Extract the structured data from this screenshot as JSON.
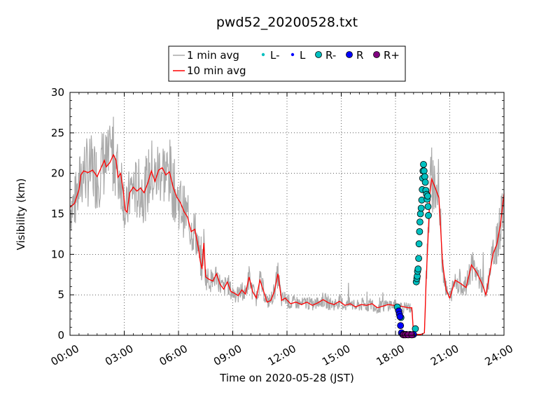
{
  "chart_data": {
    "type": "line",
    "title": "pwd52_20200528.txt",
    "xlabel": "Time on 2020-05-28 (JST)",
    "ylabel": "Visibility (km)",
    "xlim": [
      0,
      24
    ],
    "ylim": [
      0,
      30
    ],
    "x_tick_labels": [
      "00:00",
      "03:00",
      "06:00",
      "09:00",
      "12:00",
      "15:00",
      "18:00",
      "21:00",
      "24:00"
    ],
    "y_tick_labels": [
      "0",
      "5",
      "10",
      "15",
      "20",
      "25",
      "30"
    ],
    "grid": true,
    "legend_position": "top-center",
    "legend": {
      "one_min": "1 min avg",
      "ten_min": "10 min avg",
      "l_minus": "L-",
      "l": "L",
      "r_minus": "R-",
      "r": "R",
      "r_plus": "R+"
    },
    "series": [
      {
        "name": "10 min avg",
        "color": "#ff0000",
        "x_hours": [
          0.0,
          0.25,
          0.5,
          0.6,
          0.75,
          1.0,
          1.25,
          1.5,
          1.7,
          1.9,
          2.0,
          2.2,
          2.4,
          2.55,
          2.65,
          2.8,
          2.95,
          3.05,
          3.15,
          3.3,
          3.5,
          3.7,
          3.9,
          4.1,
          4.3,
          4.5,
          4.7,
          4.9,
          5.1,
          5.3,
          5.5,
          5.7,
          5.9,
          6.1,
          6.3,
          6.5,
          6.7,
          6.9,
          7.1,
          7.2,
          7.3,
          7.4,
          7.5,
          7.7,
          7.9,
          8.1,
          8.3,
          8.5,
          8.7,
          8.9,
          9.1,
          9.3,
          9.5,
          9.7,
          9.9,
          10.1,
          10.3,
          10.5,
          10.7,
          10.9,
          11.1,
          11.3,
          11.5,
          11.7,
          11.9,
          12.2,
          12.5,
          12.8,
          13.1,
          13.4,
          13.7,
          14.0,
          14.3,
          14.6,
          14.9,
          15.2,
          15.5,
          15.8,
          16.1,
          16.4,
          16.7,
          17.0,
          17.3,
          17.6,
          17.9,
          18.1,
          18.3,
          18.5,
          18.7,
          18.9,
          19.0,
          19.05,
          19.1,
          19.2,
          19.3,
          19.4,
          19.5,
          19.6,
          19.7,
          19.8,
          19.9,
          20.0,
          20.2,
          20.4,
          20.6,
          20.8,
          21.0,
          21.3,
          21.6,
          21.9,
          22.2,
          22.5,
          22.8,
          23.0,
          23.2,
          23.4,
          23.6,
          23.8,
          24.0
        ],
        "values": [
          15.8,
          16.3,
          18.0,
          19.8,
          20.3,
          20.1,
          20.4,
          19.6,
          20.6,
          21.6,
          20.8,
          21.3,
          22.3,
          21.6,
          19.5,
          20.0,
          17.8,
          15.5,
          15.2,
          17.6,
          18.3,
          17.8,
          18.2,
          17.6,
          18.8,
          20.3,
          19.0,
          20.4,
          20.7,
          19.8,
          20.2,
          18.3,
          17.1,
          16.4,
          15.3,
          14.6,
          12.8,
          13.1,
          10.8,
          9.2,
          8.2,
          11.4,
          7.2,
          6.9,
          6.7,
          7.6,
          6.3,
          5.7,
          6.6,
          5.4,
          5.2,
          4.9,
          5.6,
          5.1,
          7.2,
          5.4,
          4.6,
          6.8,
          5.5,
          4.1,
          4.3,
          5.4,
          7.6,
          4.3,
          4.6,
          3.9,
          4.1,
          3.8,
          4.1,
          3.7,
          4.0,
          4.4,
          4.0,
          3.8,
          4.2,
          3.7,
          3.9,
          3.5,
          3.8,
          3.7,
          3.9,
          3.4,
          3.6,
          3.8,
          3.7,
          3.5,
          3.6,
          3.5,
          3.4,
          3.4,
          0.2,
          0.1,
          0.1,
          0.1,
          0.1,
          0.1,
          0.2,
          0.3,
          7.0,
          12.0,
          17.5,
          19.3,
          18.2,
          17.0,
          9.0,
          5.6,
          4.6,
          6.8,
          6.4,
          5.9,
          8.7,
          7.7,
          6.3,
          5.0,
          7.5,
          10.1,
          11.2,
          13.6,
          17.5
        ]
      }
    ],
    "markers": [
      {
        "type": "R-",
        "color": "#00c0c0",
        "points": [
          [
            18.1,
            3.5
          ],
          [
            18.3,
            2.2
          ],
          [
            19.1,
            0.8
          ],
          [
            19.15,
            6.6
          ],
          [
            19.18,
            7.0
          ],
          [
            19.2,
            7.3
          ],
          [
            19.22,
            7.9
          ],
          [
            19.25,
            8.2
          ],
          [
            19.28,
            9.5
          ],
          [
            19.3,
            11.3
          ],
          [
            19.33,
            12.8
          ],
          [
            19.35,
            14.0
          ],
          [
            19.38,
            15.0
          ],
          [
            19.42,
            15.7
          ],
          [
            19.45,
            16.7
          ],
          [
            19.48,
            18.0
          ],
          [
            19.5,
            19.4
          ],
          [
            19.52,
            20.3
          ],
          [
            19.55,
            21.1
          ],
          [
            19.58,
            20.3
          ],
          [
            19.62,
            19.6
          ],
          [
            19.65,
            18.9
          ],
          [
            19.68,
            17.9
          ],
          [
            19.72,
            17.4
          ],
          [
            19.75,
            16.8
          ],
          [
            19.78,
            17.2
          ],
          [
            19.8,
            15.9
          ],
          [
            19.82,
            14.8
          ]
        ]
      },
      {
        "type": "R",
        "color": "#0000ff",
        "points": [
          [
            18.18,
            3.0
          ],
          [
            18.22,
            2.6
          ],
          [
            18.25,
            2.3
          ],
          [
            18.28,
            1.2
          ],
          [
            18.33,
            0.3
          ],
          [
            18.4,
            0.1
          ],
          [
            18.5,
            0.1
          ],
          [
            18.6,
            0.1
          ],
          [
            18.8,
            0.1
          ],
          [
            19.0,
            0.1
          ]
        ]
      },
      {
        "type": "R+",
        "color": "#800080",
        "points": [
          [
            18.45,
            0.05
          ],
          [
            18.55,
            0.05
          ],
          [
            18.7,
            0.05
          ],
          [
            18.9,
            0.05
          ]
        ]
      }
    ]
  }
}
